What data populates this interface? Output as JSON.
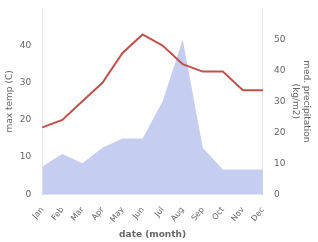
{
  "chart_data": {
    "type": "line",
    "xlabel": "date (month)",
    "ylabel": "max temp (C)",
    "y2label": "med. precipitation\n(kg/m2)",
    "categories": [
      "Jan",
      "Feb",
      "Mar",
      "Apr",
      "May",
      "Jun",
      "Jul",
      "Aug",
      "Sep",
      "Oct",
      "Nov",
      "Dec"
    ],
    "series": [
      {
        "type": "area",
        "axis": "y2",
        "color": "#c5cef0",
        "values": [
          9,
          13,
          10,
          15,
          18,
          18,
          30,
          50,
          15,
          8,
          8,
          8
        ]
      },
      {
        "type": "line",
        "color": "#c0504d",
        "values": [
          18,
          20,
          25,
          30,
          38,
          43,
          40,
          35,
          33,
          33,
          28,
          28
        ]
      }
    ],
    "ylim": [
      0,
      50
    ],
    "yticks": [
      0,
      10,
      20,
      30,
      40
    ],
    "y2lim": [
      0,
      60
    ],
    "y2ticks": [
      0,
      10,
      20,
      30,
      40,
      50
    ],
    "grid": false
  }
}
